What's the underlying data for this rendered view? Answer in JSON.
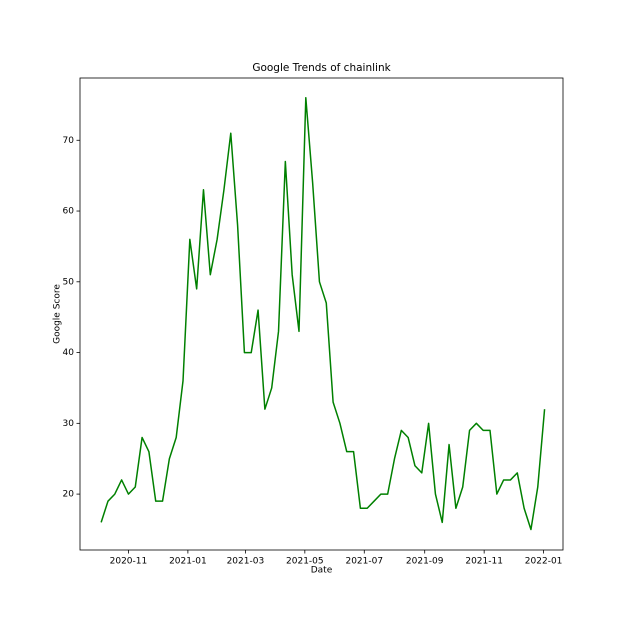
{
  "chart_data": {
    "type": "line",
    "title": "Google Trends of chainlink",
    "x_label": "Date",
    "y_label": "Google Score",
    "values": [
      16,
      19,
      20,
      22,
      20,
      21,
      28,
      26,
      19,
      19,
      25,
      28,
      36,
      56,
      49,
      63,
      51,
      56,
      63,
      71,
      58,
      40,
      40,
      46,
      32,
      35,
      43,
      67,
      51,
      43,
      76,
      64,
      50,
      47,
      33,
      30,
      26,
      26,
      18,
      18,
      19,
      20,
      20,
      25,
      29,
      28,
      24,
      23,
      30,
      20,
      16,
      27,
      18,
      21,
      29,
      30,
      29,
      29,
      20,
      22,
      22,
      23,
      18,
      15,
      21,
      32
    ],
    "color": "#008000",
    "xlim": [
      -3.1,
      67.7
    ],
    "xticks": [
      {
        "value": 4.0,
        "label": "2020-11"
      },
      {
        "value": 12.714,
        "label": "2021-01"
      },
      {
        "value": 21.143,
        "label": "2021-03"
      },
      {
        "value": 29.857,
        "label": "2021-05"
      },
      {
        "value": 38.571,
        "label": "2021-07"
      },
      {
        "value": 47.429,
        "label": "2021-09"
      },
      {
        "value": 56.143,
        "label": "2021-11"
      },
      {
        "value": 64.857,
        "label": "2022-01"
      }
    ],
    "ylim": [
      12.1,
      78.8
    ],
    "yticks": [
      20,
      30,
      40,
      50,
      60,
      70
    ],
    "grid": false
  }
}
